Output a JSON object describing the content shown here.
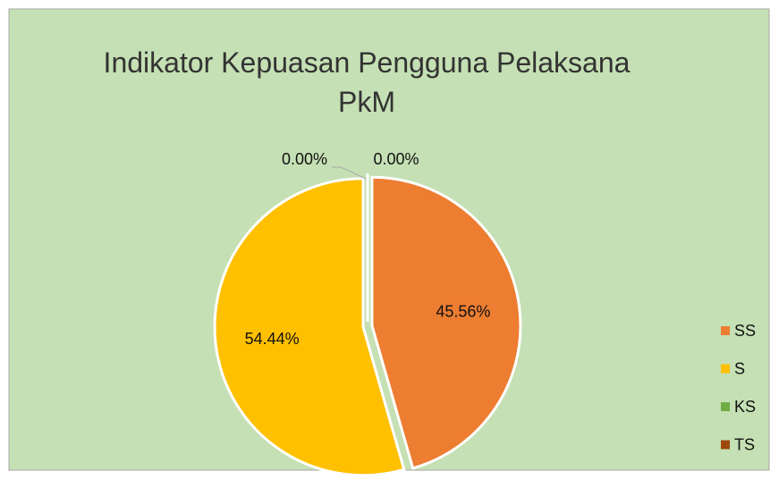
{
  "chart_data": {
    "type": "pie",
    "title": "Indikator Kepuasan Pengguna Pelaksana PkM",
    "categories": [
      "SS",
      "S",
      "KS",
      "TS"
    ],
    "values": [
      45.56,
      54.44,
      0,
      0
    ],
    "value_labels": [
      "45.56%",
      "54.44%",
      "0.00%",
      "0.00%"
    ],
    "colors": [
      "#ed7d31",
      "#ffc000",
      "#70ad47",
      "#9e480e"
    ],
    "legend": "right"
  }
}
